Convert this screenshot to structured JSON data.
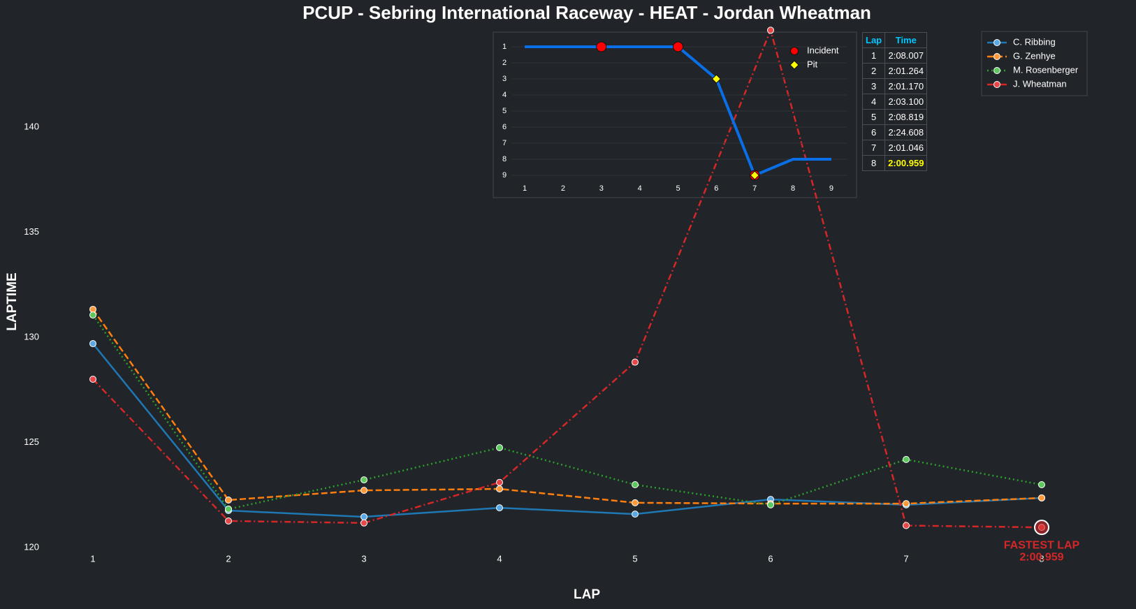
{
  "chart_data": [
    {
      "type": "line",
      "title": "PCUP - Sebring International Raceway - HEAT - Jordan Wheatman",
      "x_label": "LAP",
      "y_label": "LAPTIME",
      "x": [
        1,
        2,
        3,
        4,
        5,
        6,
        7,
        8
      ],
      "xlim": [
        0.5,
        8.5
      ],
      "xticks": [
        1,
        2,
        3,
        4,
        5,
        6,
        7,
        8
      ],
      "ylim": [
        120,
        145
      ],
      "yticks": [
        120,
        125,
        130,
        135,
        140
      ],
      "grid": false,
      "legend": "upper right",
      "series": [
        {
          "name": "C. Ribbing",
          "color": "#1f77b4",
          "marker_color": "#5aa9e6",
          "linestyle": "solid",
          "values": [
            129.7,
            121.76,
            121.46,
            121.89,
            121.59,
            122.29,
            122.03,
            122.36
          ]
        },
        {
          "name": "G. Zenhye",
          "color": "#ff7f0e",
          "marker_color": "#ff9a3c",
          "linestyle": "dashed",
          "values": [
            131.33,
            122.26,
            122.72,
            122.79,
            122.13,
            122.09,
            122.09,
            122.36
          ]
        },
        {
          "name": "M. Rosenberger",
          "color": "#2ca02c",
          "marker_color": "#5cc95c",
          "linestyle": "dotted",
          "values": [
            131.06,
            121.83,
            123.22,
            124.75,
            122.99,
            122.03,
            124.19,
            122.99
          ]
        },
        {
          "name": "J. Wheatman",
          "color": "#d62728",
          "marker_color": "#e8474a",
          "linestyle": "dashdot",
          "values": [
            128.007,
            121.264,
            121.17,
            123.1,
            128.819,
            144.608,
            121.046,
            120.959
          ]
        }
      ],
      "annotation": {
        "series": 3,
        "point": 7,
        "lines": [
          "FASTEST LAP",
          "2:00.959"
        ],
        "color": "#d62728"
      }
    },
    {
      "type": "line",
      "x": [
        1,
        2,
        3,
        4,
        5,
        6,
        7,
        8,
        9
      ],
      "values": [
        1,
        1,
        1,
        1,
        1,
        3,
        9,
        8,
        8
      ],
      "color": "#0a6ee6",
      "xlim": [
        0.4,
        9.6
      ],
      "xticks": [
        1,
        2,
        3,
        4,
        5,
        6,
        7,
        8,
        9
      ],
      "ylim": [
        9.5,
        0.5
      ],
      "yticks": [
        1,
        2,
        3,
        4,
        5,
        6,
        7,
        8,
        9
      ],
      "grid": true,
      "markers": [
        {
          "name": "Incident",
          "shape": "circle",
          "color": "#ff0000",
          "x": [
            3,
            5,
            7
          ],
          "values": [
            1,
            1,
            9
          ]
        },
        {
          "name": "Pit",
          "shape": "diamond",
          "color": "#ffff00",
          "x": [
            6,
            7
          ],
          "values": [
            3,
            9
          ]
        }
      ]
    }
  ],
  "table": {
    "columns": [
      "Lap",
      "Time"
    ],
    "rows": [
      [
        1,
        "2:08.007"
      ],
      [
        2,
        "2:01.264"
      ],
      [
        3,
        "2:01.170"
      ],
      [
        4,
        "2:03.100"
      ],
      [
        5,
        "2:08.819"
      ],
      [
        6,
        "2:24.608"
      ],
      [
        7,
        "2:01.046"
      ],
      [
        8,
        "2:00.959"
      ]
    ],
    "highlight_row": 7,
    "highlight_color": "#ffff00"
  }
}
